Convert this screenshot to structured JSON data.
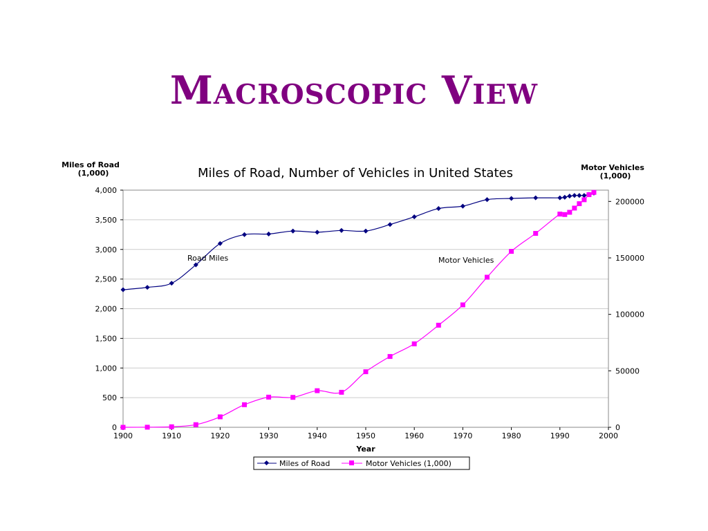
{
  "slide": {
    "title": "Macroscopic View",
    "title_color": "#800080"
  },
  "chart_data": {
    "type": "line",
    "title": "Miles of Road, Number of Vehicles in United States",
    "xlabel": "Year",
    "ylabel_left": [
      "Miles of Road",
      "(1,000)"
    ],
    "ylabel_right": [
      "Motor Vehicles",
      "(1,000)"
    ],
    "xlim": [
      1900,
      2000
    ],
    "ylim_left": [
      0,
      4000
    ],
    "ylim_right": [
      0,
      210000
    ],
    "x_ticks": [
      "1900",
      "1910",
      "1920",
      "1930",
      "1940",
      "1950",
      "1960",
      "1970",
      "1980",
      "1990",
      "2000"
    ],
    "y_ticks_left": [
      "0",
      "500",
      "1,000",
      "1,500",
      "2,000",
      "2,500",
      "3,000",
      "3,500",
      "4,000"
    ],
    "y_ticks_right": [
      "0",
      "50000",
      "100000",
      "150000",
      "200000"
    ],
    "grid": "horizontal",
    "legend_position": "bottom",
    "series": [
      {
        "name": "Miles of Road",
        "axis": "left",
        "color": "#000080",
        "marker": "diamond",
        "x": [
          1900,
          1905,
          1910,
          1915,
          1920,
          1925,
          1930,
          1935,
          1940,
          1945,
          1950,
          1955,
          1960,
          1965,
          1970,
          1975,
          1980,
          1985,
          1990,
          1991,
          1992,
          1993,
          1994,
          1995,
          1996,
          1997
        ],
        "y": [
          2320,
          2360,
          2430,
          2740,
          3100,
          3250,
          3260,
          3310,
          3290,
          3320,
          3310,
          3420,
          3550,
          3690,
          3730,
          3840,
          3860,
          3870,
          3870,
          3880,
          3900,
          3910,
          3910,
          3910,
          3930,
          3950
        ]
      },
      {
        "name": "Motor Vehicles (1,000)",
        "axis": "right",
        "color": "#ff00ff",
        "marker": "square",
        "x": [
          1900,
          1905,
          1910,
          1915,
          1920,
          1925,
          1930,
          1935,
          1940,
          1945,
          1950,
          1955,
          1960,
          1965,
          1970,
          1975,
          1980,
          1985,
          1990,
          1991,
          1992,
          1993,
          1994,
          1995,
          1996,
          1997
        ],
        "y": [
          8,
          78,
          460,
          2330,
          9240,
          20000,
          26700,
          26500,
          32400,
          31000,
          49200,
          62700,
          73900,
          90400,
          108400,
          132900,
          155800,
          171700,
          188800,
          188400,
          190400,
          194100,
          198000,
          201500,
          206000,
          208000
        ]
      }
    ],
    "annotations": [
      {
        "text": "Road Miles",
        "near": "Miles of Road"
      },
      {
        "text": "Motor Vehicles",
        "near": "Motor Vehicles (1,000)"
      }
    ]
  }
}
